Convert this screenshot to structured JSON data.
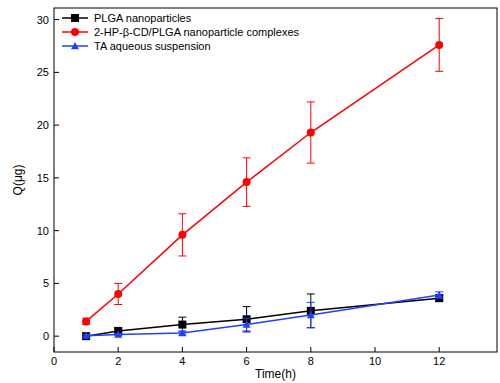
{
  "chart_data": {
    "type": "line",
    "x_label": "Time(h)",
    "y_label": "Q(μg)",
    "x": [
      1,
      2,
      4,
      6,
      8,
      12
    ],
    "xlim": [
      0,
      13.8
    ],
    "xticks": [
      0,
      2,
      4,
      6,
      8,
      10,
      12
    ],
    "ylim": [
      -1.5,
      31.1
    ],
    "yticks": [
      0,
      5,
      10,
      15,
      20,
      25,
      30
    ],
    "legend": "upper-left",
    "series": [
      {
        "name": "PLGA nanoparticles",
        "color": "#000000",
        "marker": "square",
        "values": [
          0,
          0.5,
          1.1,
          1.6,
          2.4,
          3.6
        ],
        "errors": [
          0.2,
          0.3,
          0.7,
          1.2,
          1.6,
          0.3
        ]
      },
      {
        "name": "2-HP-β-CD/PLGA nanoparticle complexes",
        "color": "#ff0000",
        "marker": "circle",
        "values": [
          1.4,
          4.0,
          9.6,
          14.6,
          19.3,
          27.6
        ],
        "errors": [
          0.3,
          1.0,
          2.0,
          2.3,
          2.9,
          2.5
        ]
      },
      {
        "name": "TA aqueous suspension",
        "color": "#2040ff",
        "marker": "triangle",
        "values": [
          0.05,
          0.15,
          0.3,
          1.1,
          2.0,
          3.9
        ],
        "errors": [
          0.1,
          0.1,
          0.2,
          0.6,
          1.2,
          0.3
        ]
      }
    ]
  }
}
